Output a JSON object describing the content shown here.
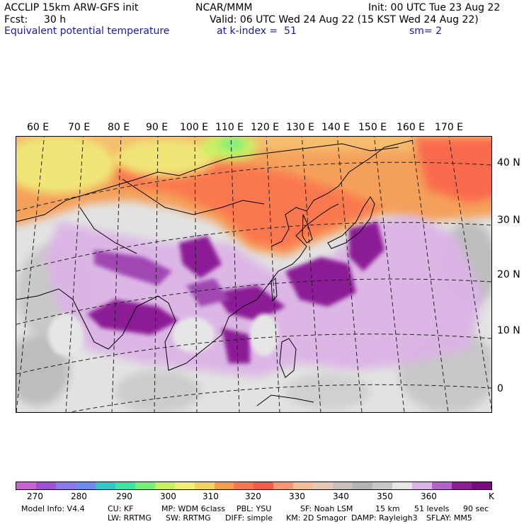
{
  "header": {
    "model": "ACCLIP 15km ARW-GFS init",
    "org": "NCAR/MMM",
    "init": "Init: 00 UTC Tue 23 Aug 22",
    "fcst_label": "Fcst:",
    "fcst_value": "30 h",
    "valid": "Valid: 06 UTC Wed 24 Aug 22 (15 KST Wed 24 Aug 22)",
    "field": "Equivalent potential temperature",
    "level": "at k-index =  51",
    "smoothing": "sm= 2"
  },
  "map": {
    "lon_labels": [
      "60 E",
      "70 E",
      "80 E",
      "90 E",
      "100 E",
      "110 E",
      "120 E",
      "130 E",
      "140 E",
      "150 E",
      "160 E",
      "170 E"
    ],
    "lat_labels": [
      "40 N",
      "30 N",
      "20 N",
      "10 N",
      "0"
    ]
  },
  "colorbar": {
    "colors": [
      "#c864d2",
      "#a050d2",
      "#8c78e6",
      "#6e8cf0",
      "#32c8c8",
      "#3ce6a0",
      "#78f078",
      "#c8f064",
      "#f0f078",
      "#f5d264",
      "#f5a050",
      "#fa7850",
      "#fa5a46",
      "#fa9678",
      "#f5be9b",
      "#e6c8b4",
      "#c8c0b8",
      "#b4b4b4",
      "#c8c8c8",
      "#e6e6e6",
      "#dcb4e6",
      "#b464c8",
      "#8c1e96",
      "#780a82"
    ],
    "ticks": [
      "270",
      "280",
      "290",
      "300",
      "310",
      "320",
      "330",
      "340",
      "350",
      "360",
      "K"
    ]
  },
  "footer": {
    "line1": [
      "Model Info: V4.4",
      "CU: KF",
      "MP: WDM 6class",
      "PBL: YSU",
      "SF: Noah LSM",
      "15 km",
      "51 levels",
      "90 sec"
    ],
    "line2": [
      "LW: RRTMG",
      "SW: RRTMG",
      "DIFF: simple",
      "KM: 2D Smagor",
      "DAMP: Rayleigh3",
      "SFLAY: MM5"
    ]
  }
}
